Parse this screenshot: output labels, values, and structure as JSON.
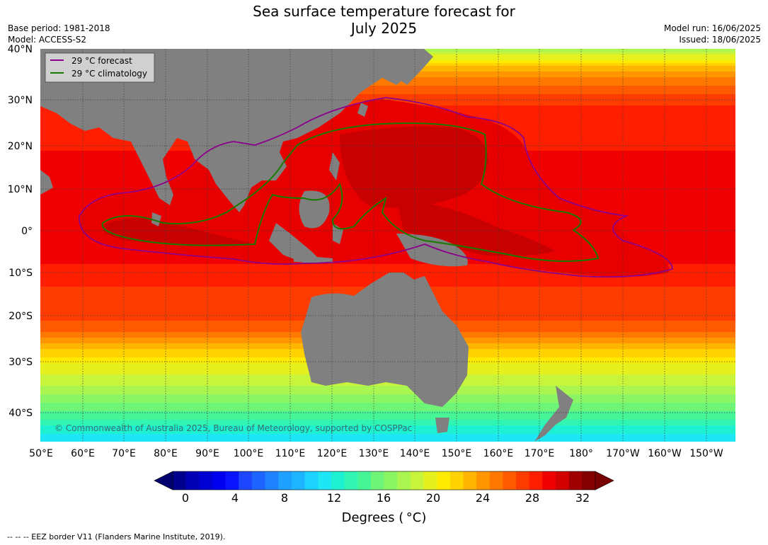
{
  "title": {
    "line1": "Sea surface temperature forecast for",
    "line2": "July 2025"
  },
  "meta_left": {
    "base_period": "Base period: 1981-2018",
    "model": "Model: ACCESS-S2"
  },
  "meta_right": {
    "model_run": "Model run: 16/06/2025",
    "issued": "Issued: 18/06/2025"
  },
  "map": {
    "lat_labels": [
      "40°N",
      "30°N",
      "20°N",
      "10°N",
      "0°",
      "10°S",
      "20°S",
      "30°S",
      "40°S"
    ],
    "lon_labels": [
      "50°E",
      "60°E",
      "70°E",
      "80°E",
      "90°E",
      "100°E",
      "110°E",
      "120°E",
      "130°E",
      "140°E",
      "150°E",
      "160°E",
      "170°E",
      "180°",
      "170°W",
      "160°W",
      "150°W"
    ],
    "legend": [
      {
        "label": "29 °C  forecast",
        "color": "#8b008b"
      },
      {
        "label": "29 °C  climatology",
        "color": "#1a7a00"
      }
    ],
    "copyright": "© Commonwealth of Australia 2025, Bureau of Meteorology, supported by COSPPac",
    "land_color": "#808080",
    "grid": true
  },
  "colorbar": {
    "ticks": [
      "0",
      "4",
      "8",
      "12",
      "16",
      "20",
      "24",
      "28",
      "32"
    ],
    "title": "Degrees ( °C)",
    "colors": [
      "#00008c",
      "#0000b4",
      "#0000d2",
      "#0000f0",
      "#0a14ff",
      "#1e46ff",
      "#1e64ff",
      "#1e82ff",
      "#1ea0ff",
      "#1eb4ff",
      "#1ed2ff",
      "#1ee6f5",
      "#1ef0d2",
      "#32f5b4",
      "#46f596",
      "#6ef578",
      "#8cf564",
      "#aaf550",
      "#c8f53c",
      "#e6f01e",
      "#ffeb00",
      "#ffd200",
      "#ffb400",
      "#ff9600",
      "#ff7800",
      "#ff5a00",
      "#ff3c00",
      "#ff1e00",
      "#f00000",
      "#d20000",
      "#a00000",
      "#820000"
    ]
  },
  "footer": "--  --  -- EEZ border V11 (Flanders Marine Institute, 2019)."
}
